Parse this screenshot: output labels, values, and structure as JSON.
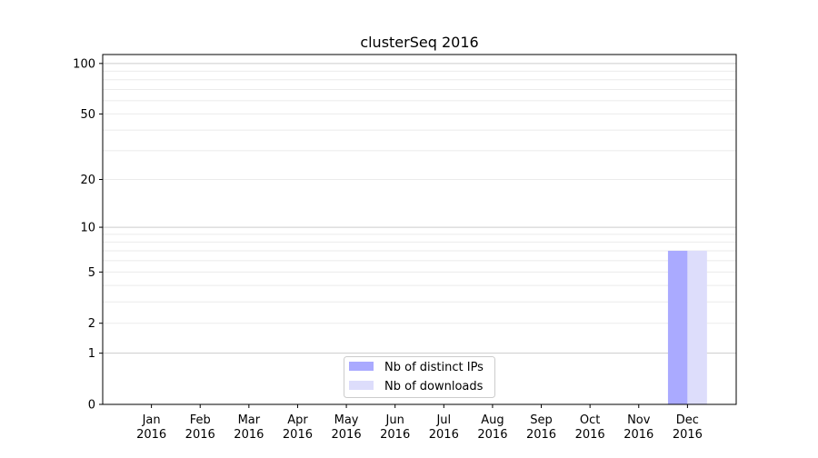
{
  "chart_data": {
    "type": "bar",
    "title": "clusterSeq 2016",
    "xlabel": "",
    "ylabel": "",
    "y_scale": "log(1+y)",
    "ylim": [
      0,
      113
    ],
    "y_ticks": [
      0,
      1,
      2,
      5,
      10,
      20,
      50,
      100
    ],
    "y_tick_labels": [
      "0",
      "1",
      "2",
      "5",
      "10",
      "20",
      "50",
      "100"
    ],
    "grid": true,
    "legend_position": "lower-center",
    "categories": [
      "Jan\n2016",
      "Feb\n2016",
      "Mar\n2016",
      "Apr\n2016",
      "May\n2016",
      "Jun\n2016",
      "Jul\n2016",
      "Aug\n2016",
      "Sep\n2016",
      "Oct\n2016",
      "Nov\n2016",
      "Dec\n2016"
    ],
    "series": [
      {
        "name": "Nb of distinct IPs",
        "color": "#aaaaff",
        "values": [
          0,
          0,
          0,
          0,
          0,
          0,
          0,
          0,
          0,
          0,
          0,
          7
        ]
      },
      {
        "name": "Nb of downloads",
        "color": "#ddddfb",
        "values": [
          0,
          0,
          0,
          0,
          0,
          0,
          0,
          0,
          0,
          0,
          0,
          7
        ]
      }
    ]
  }
}
